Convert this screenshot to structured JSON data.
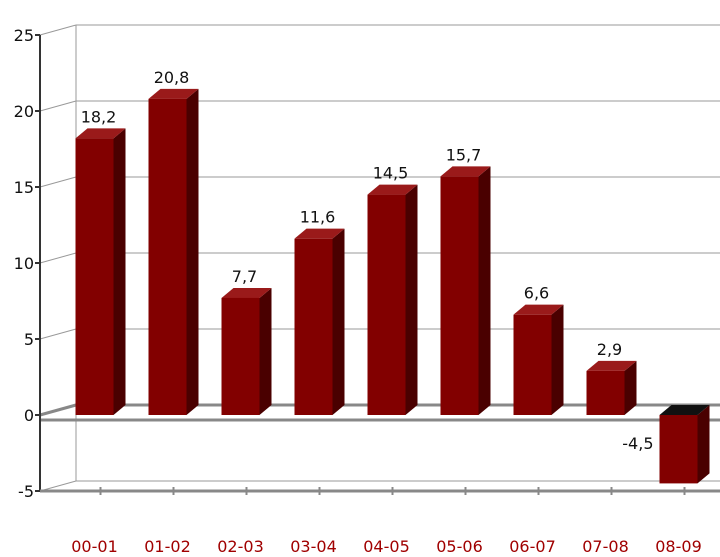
{
  "chart_data": {
    "type": "bar",
    "categories": [
      "00-01",
      "01-02",
      "02-03",
      "03-04",
      "04-05",
      "05-06",
      "06-07",
      "07-08",
      "08-09"
    ],
    "values": [
      18.2,
      20.8,
      7.7,
      11.6,
      14.5,
      15.7,
      6.6,
      2.9,
      -4.5
    ],
    "data_labels": [
      "18,2",
      "20,8",
      "7,7",
      "11,6",
      "14,5",
      "15,7",
      "6,6",
      "2,9",
      "-4,5"
    ],
    "y_ticks": [
      25,
      20,
      15,
      10,
      5,
      0,
      -5
    ],
    "ylim": [
      -5,
      25
    ],
    "grid": true,
    "style": "3d",
    "colors": {
      "bar_front": "#820000",
      "bar_side": "#4a0000",
      "bar_top": "#9a1a1a",
      "negative_top": "#111111",
      "category_label": "#a00000",
      "axis": "#888888"
    }
  }
}
